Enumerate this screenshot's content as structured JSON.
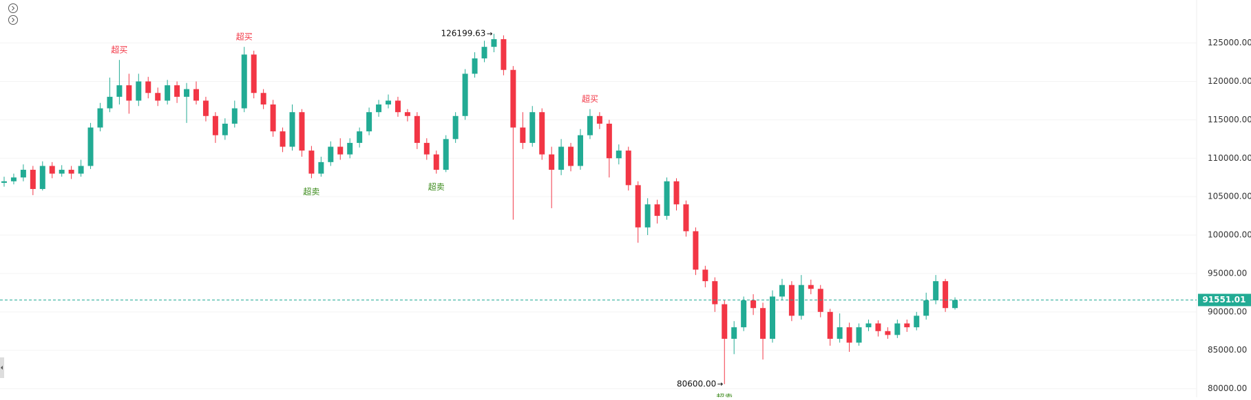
{
  "chart_data": {
    "type": "candlestick",
    "up_color": "#22ab94",
    "down_color": "#f23645",
    "ylim": [
      78890,
      130600
    ],
    "yticks": [
      {
        "value": 80000,
        "label": "80000.00"
      },
      {
        "value": 85000,
        "label": "85000.00"
      },
      {
        "value": 90000,
        "label": "90000.00"
      },
      {
        "value": 95000,
        "label": "95000.00"
      },
      {
        "value": 100000,
        "label": "100000.00"
      },
      {
        "value": 105000,
        "label": "105000.00"
      },
      {
        "value": 110000,
        "label": "110000.00"
      },
      {
        "value": 115000,
        "label": "115000.00"
      },
      {
        "value": 120000,
        "label": "120000.00"
      },
      {
        "value": 125000,
        "label": "125000.00"
      }
    ],
    "grid": true,
    "open": [
      106800,
      107000,
      107500,
      108500,
      106000,
      109000,
      108000,
      108500,
      108000,
      109000,
      114000,
      116500,
      118000,
      119500,
      117500,
      120000,
      118500,
      117500,
      119500,
      118000,
      119000,
      117500,
      115500,
      113000,
      114500,
      116500,
      123500,
      118500,
      117000,
      113500,
      111500,
      116000,
      111000,
      108000,
      109500,
      111500,
      110500,
      112000,
      113500,
      116000,
      117000,
      117500,
      116000,
      115500,
      112000,
      110500,
      108500,
      112500,
      115500,
      121000,
      123000,
      124500,
      125500,
      121500,
      114000,
      112000,
      116000,
      110500,
      108500,
      111500,
      109000,
      113000,
      115500,
      114500,
      110000,
      111000,
      106500,
      101000,
      104000,
      102500,
      107000,
      104000,
      100500,
      95500,
      94000,
      91000,
      86500,
      88000,
      91500,
      90500,
      86500,
      92000,
      93500,
      89500,
      93500,
      93000,
      90000,
      86500,
      88000,
      86000,
      88000,
      88500,
      87500,
      87000,
      88500,
      88000,
      89500,
      91500,
      94000,
      90500
    ],
    "high": [
      107600,
      108000,
      109200,
      109000,
      109600,
      109500,
      109100,
      109000,
      109800,
      114600,
      117200,
      120500,
      122800,
      121000,
      121000,
      120600,
      119200,
      120200,
      120000,
      119800,
      120000,
      118000,
      116000,
      115200,
      117500,
      124500,
      124000,
      119000,
      117600,
      114000,
      117000,
      116400,
      111600,
      110200,
      112200,
      112600,
      112600,
      114000,
      116600,
      117600,
      118300,
      118000,
      116400,
      116000,
      112600,
      111000,
      113000,
      116000,
      121600,
      123800,
      125300,
      126199.63,
      126000,
      122000,
      116000,
      116800,
      116500,
      111500,
      112500,
      112000,
      113800,
      116400,
      116000,
      115000,
      111800,
      111500,
      107000,
      104800,
      104600,
      107500,
      107400,
      104500,
      101000,
      96000,
      94500,
      91500,
      88800,
      92000,
      92300,
      91200,
      92800,
      94300,
      94000,
      94800,
      94200,
      93500,
      90400,
      89800,
      88600,
      88500,
      89000,
      88900,
      88000,
      89000,
      89000,
      90000,
      92500,
      94800,
      94300,
      91900
    ],
    "low": [
      106300,
      106600,
      107000,
      105200,
      105800,
      107400,
      107600,
      107300,
      107600,
      108600,
      113500,
      116000,
      117000,
      115800,
      116800,
      117800,
      116800,
      117000,
      117200,
      114600,
      117000,
      114800,
      112000,
      112400,
      114000,
      116000,
      117800,
      116400,
      112800,
      110800,
      111000,
      110200,
      107400,
      107600,
      109000,
      109800,
      110000,
      111400,
      113000,
      115400,
      116500,
      115400,
      114800,
      111200,
      109800,
      108000,
      108200,
      112000,
      115000,
      120500,
      122500,
      123800,
      120800,
      102000,
      111200,
      111500,
      109800,
      103500,
      107800,
      108300,
      108500,
      112500,
      113800,
      107500,
      109200,
      105800,
      99000,
      100000,
      101500,
      102000,
      103200,
      99800,
      94800,
      93200,
      90000,
      80600,
      84500,
      87500,
      89600,
      83800,
      86000,
      91500,
      88800,
      89000,
      92300,
      89300,
      85600,
      86000,
      84800,
      85600,
      87500,
      86800,
      86500,
      86600,
      87400,
      87600,
      89000,
      91000,
      90000,
      90300
    ],
    "close": [
      107000,
      107500,
      108500,
      106000,
      109000,
      108000,
      108500,
      108000,
      109000,
      114000,
      116500,
      118000,
      119500,
      117500,
      120000,
      118500,
      117500,
      119500,
      118000,
      119000,
      117500,
      115500,
      113000,
      114500,
      116500,
      123500,
      118500,
      117000,
      113500,
      111500,
      116000,
      111000,
      108000,
      109500,
      111500,
      110500,
      112000,
      113500,
      116000,
      117000,
      117500,
      116000,
      115500,
      112000,
      110500,
      108500,
      112500,
      115500,
      121000,
      123000,
      124500,
      125500,
      121500,
      114000,
      112000,
      116000,
      110500,
      108500,
      111500,
      109000,
      113000,
      115500,
      114500,
      110000,
      111000,
      106500,
      101000,
      104000,
      102500,
      107000,
      104000,
      100500,
      95500,
      94000,
      91000,
      86500,
      88000,
      91500,
      90500,
      86500,
      92000,
      93500,
      89500,
      93500,
      93000,
      90000,
      86500,
      88000,
      86000,
      88000,
      88500,
      87500,
      87000,
      88500,
      88000,
      89500,
      91500,
      94000,
      90500,
      91551.01
    ],
    "overbought_labels": [
      null,
      null,
      null,
      null,
      null,
      null,
      null,
      null,
      null,
      null,
      null,
      null,
      "超买",
      null,
      null,
      null,
      null,
      null,
      null,
      null,
      null,
      null,
      null,
      null,
      null,
      "超买",
      null,
      null,
      null,
      null,
      null,
      null,
      null,
      null,
      null,
      null,
      null,
      null,
      null,
      null,
      null,
      null,
      null,
      null,
      null,
      null,
      null,
      null,
      null,
      null,
      null,
      null,
      null,
      null,
      null,
      null,
      null,
      null,
      null,
      null,
      null,
      "超买",
      null,
      null,
      null,
      null,
      null,
      null,
      null,
      null,
      null,
      null,
      null,
      null,
      null,
      null,
      null,
      null,
      null,
      null,
      null,
      null,
      null,
      null,
      null,
      null,
      null,
      null,
      null,
      null,
      null,
      null,
      null,
      null,
      null,
      null,
      null,
      null,
      null,
      null
    ],
    "oversold_labels": [
      null,
      null,
      null,
      null,
      null,
      null,
      null,
      null,
      null,
      null,
      null,
      null,
      null,
      null,
      null,
      null,
      null,
      null,
      null,
      null,
      null,
      null,
      null,
      null,
      null,
      null,
      null,
      null,
      null,
      null,
      null,
      null,
      "超卖",
      null,
      null,
      null,
      null,
      null,
      null,
      null,
      null,
      null,
      null,
      null,
      null,
      "超卖",
      null,
      null,
      null,
      null,
      null,
      null,
      null,
      null,
      null,
      null,
      null,
      null,
      null,
      null,
      null,
      null,
      null,
      null,
      null,
      null,
      null,
      null,
      null,
      null,
      null,
      null,
      null,
      null,
      null,
      "超卖",
      null,
      null,
      null,
      null,
      null,
      null,
      null,
      null,
      null,
      null,
      null,
      null,
      null,
      null,
      null,
      null,
      null,
      null,
      null,
      null,
      null,
      null,
      null,
      null
    ],
    "max_index_label": "126199.63",
    "min_label": "80600.00"
  }
}
